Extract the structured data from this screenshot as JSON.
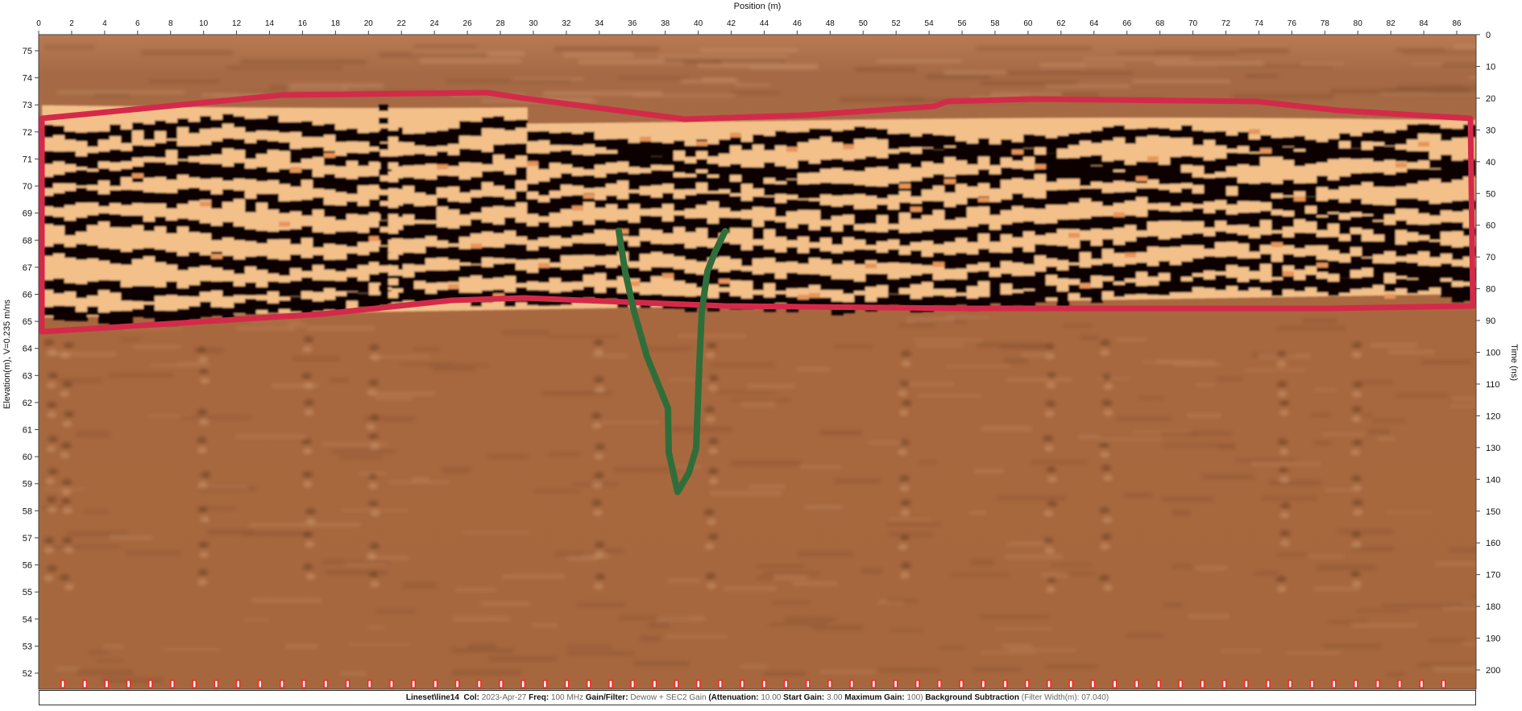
{
  "x_axis": {
    "title": "Position (m)",
    "ticks": [
      "0",
      "2",
      "4",
      "6",
      "8",
      "10",
      "12",
      "14",
      "16",
      "18",
      "20",
      "22",
      "24",
      "26",
      "28",
      "30",
      "32",
      "34",
      "36",
      "38",
      "40",
      "42",
      "44",
      "46",
      "48",
      "50",
      "52",
      "54",
      "56",
      "58",
      "60",
      "62",
      "64",
      "66",
      "68",
      "70",
      "72",
      "74",
      "76",
      "78",
      "80",
      "82",
      "84",
      "86"
    ]
  },
  "left_axis": {
    "title": "Elevation(m), V=0.235 m/ns",
    "ticks": [
      "75",
      "74",
      "73",
      "72",
      "71",
      "70",
      "69",
      "68",
      "67",
      "66",
      "65",
      "64",
      "63",
      "62",
      "61",
      "60",
      "59",
      "58",
      "57",
      "56",
      "55",
      "54",
      "53",
      "52"
    ]
  },
  "right_axis": {
    "title": "Time (ns)",
    "ticks": [
      "0",
      "10",
      "20",
      "30",
      "40",
      "50",
      "60",
      "70",
      "80",
      "90",
      "100",
      "110",
      "120",
      "130",
      "140",
      "150",
      "160",
      "170",
      "180",
      "190",
      "200"
    ]
  },
  "annotations": {
    "layer_outline_color": "#d42a4a",
    "trench_outline_color": "#2f6e3a",
    "layer_outline_label": "",
    "trench_outline_label": ""
  },
  "colors": {
    "background": "#a8683f",
    "positive": "#f4c08a",
    "negative": "#0a0605",
    "marker": "#ff2020"
  },
  "footer": {
    "line_label": "Lineset\\line14",
    "col_label": "Col:",
    "date": "2023-Apr-27",
    "freq_label": "Freq:",
    "freq": "100 MHz",
    "gain_label": "Gain/Filter:",
    "gain": "Dewow + SEC2 Gain",
    "att_label": "(Attenuation:",
    "att": "10.00",
    "start_label": "Start Gain:",
    "start": "3.00",
    "max_label": "Maximum Gain:",
    "max": "100)",
    "bg_label": "Background Subtraction",
    "filter": "(Filter Width(m): 07.040)"
  }
}
